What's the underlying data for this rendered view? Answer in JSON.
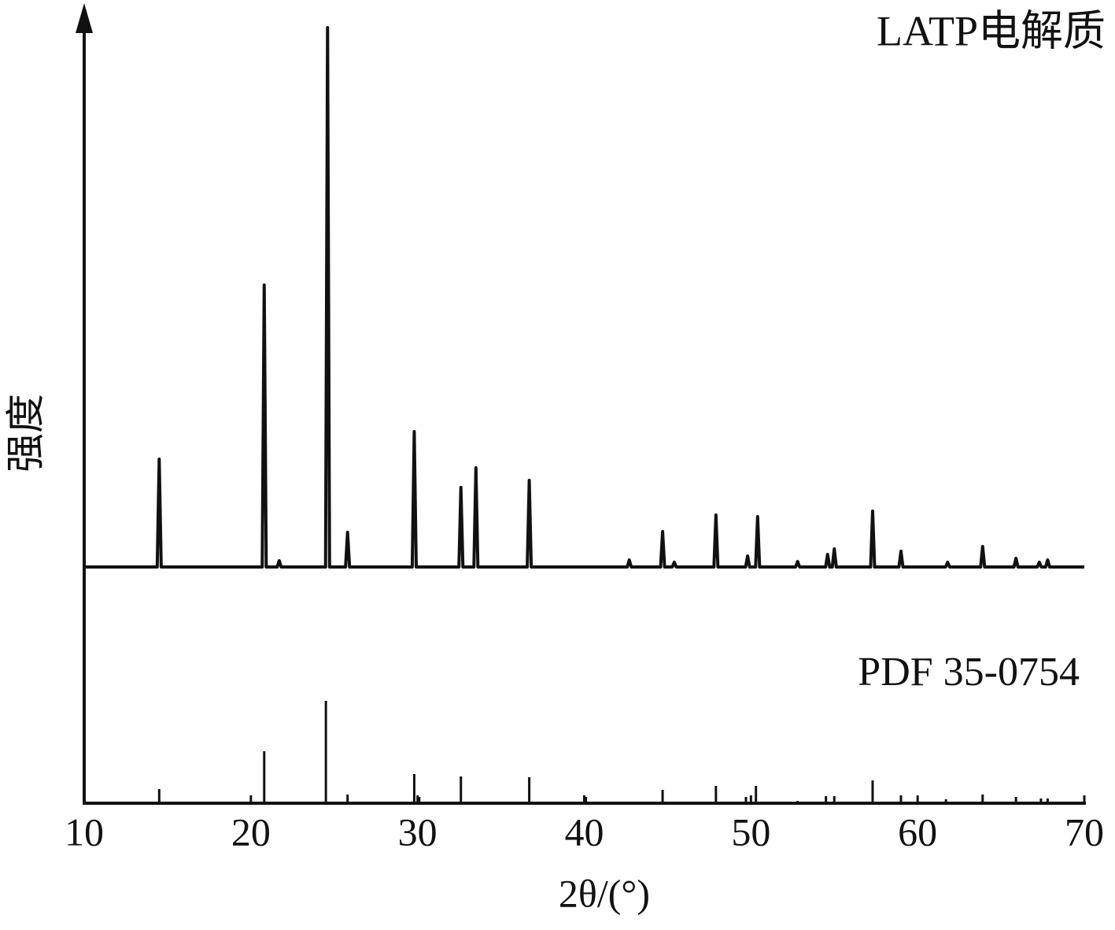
{
  "chart_data": {
    "type": "line",
    "xlabel": "2θ/(°)",
    "ylabel": "强度",
    "xlim": [
      10,
      70
    ],
    "xticks": [
      10,
      20,
      30,
      40,
      50,
      60,
      70
    ],
    "ylim": [
      0,
      100
    ],
    "series": [
      {
        "name": "LATP电解质",
        "color": "#111111",
        "style": "line",
        "x": [
          10,
          14.38,
          14.5,
          14.62,
          20.68,
          20.8,
          20.92,
          21.58,
          21.7,
          21.82,
          24.48,
          24.6,
          24.72,
          25.68,
          25.8,
          25.92,
          29.68,
          29.8,
          29.92,
          32.48,
          32.6,
          32.72,
          33.38,
          33.5,
          33.62,
          36.58,
          36.7,
          36.82,
          42.58,
          42.7,
          42.82,
          44.58,
          44.7,
          44.82,
          45.28,
          45.4,
          45.52,
          47.78,
          47.9,
          48.02,
          49.68,
          49.8,
          49.92,
          50.28,
          50.4,
          50.52,
          52.68,
          52.8,
          52.92,
          54.48,
          54.6,
          54.72,
          54.88,
          55.0,
          55.12,
          57.18,
          57.3,
          57.42,
          58.88,
          59.0,
          59.12,
          61.68,
          61.8,
          61.92,
          63.78,
          63.9,
          64.02,
          65.78,
          65.9,
          66.02,
          67.18,
          67.3,
          67.42,
          67.68,
          67.8,
          67.92,
          70
        ],
        "values": [
          30,
          30,
          43.7,
          30,
          30,
          65.8,
          30,
          30,
          30.8,
          30,
          30,
          98.5,
          30,
          30,
          34.4,
          30,
          30,
          47.2,
          30,
          30,
          40.1,
          30,
          30,
          42.6,
          30,
          30,
          41,
          30,
          30,
          30.9,
          30,
          30,
          34.5,
          30,
          30,
          30.6,
          30,
          30,
          36.6,
          30,
          30,
          31.4,
          30,
          30,
          36.4,
          30,
          30,
          30.7,
          30,
          30,
          31.6,
          30,
          30,
          32.3,
          30,
          30,
          37.1,
          30,
          30,
          32,
          30,
          30,
          30.6,
          30,
          30,
          32.6,
          30,
          30,
          31.1,
          30,
          30,
          30.6,
          30,
          30,
          30.9,
          30,
          30
        ]
      },
      {
        "name": "PDF 35-0754",
        "color": "#111111",
        "style": "stem",
        "x": [
          14.5,
          20.8,
          24.5,
          25.8,
          29.8,
          30.1,
          32.6,
          36.7,
          40.1,
          44.7,
          47.9,
          49.7,
          50.3,
          52.8,
          54.5,
          55.0,
          57.3,
          59.0,
          61.7,
          63.9,
          65.9,
          67.4,
          67.8
        ],
        "values": [
          1.8,
          6.6,
          13,
          1.1,
          3.7,
          0.8,
          3.4,
          3.3,
          0.8,
          1.7,
          2.2,
          0.8,
          2.2,
          0.3,
          0.9,
          0.9,
          2.9,
          1,
          0.5,
          1.1,
          0.8,
          0.6,
          0.6
        ]
      }
    ]
  }
}
